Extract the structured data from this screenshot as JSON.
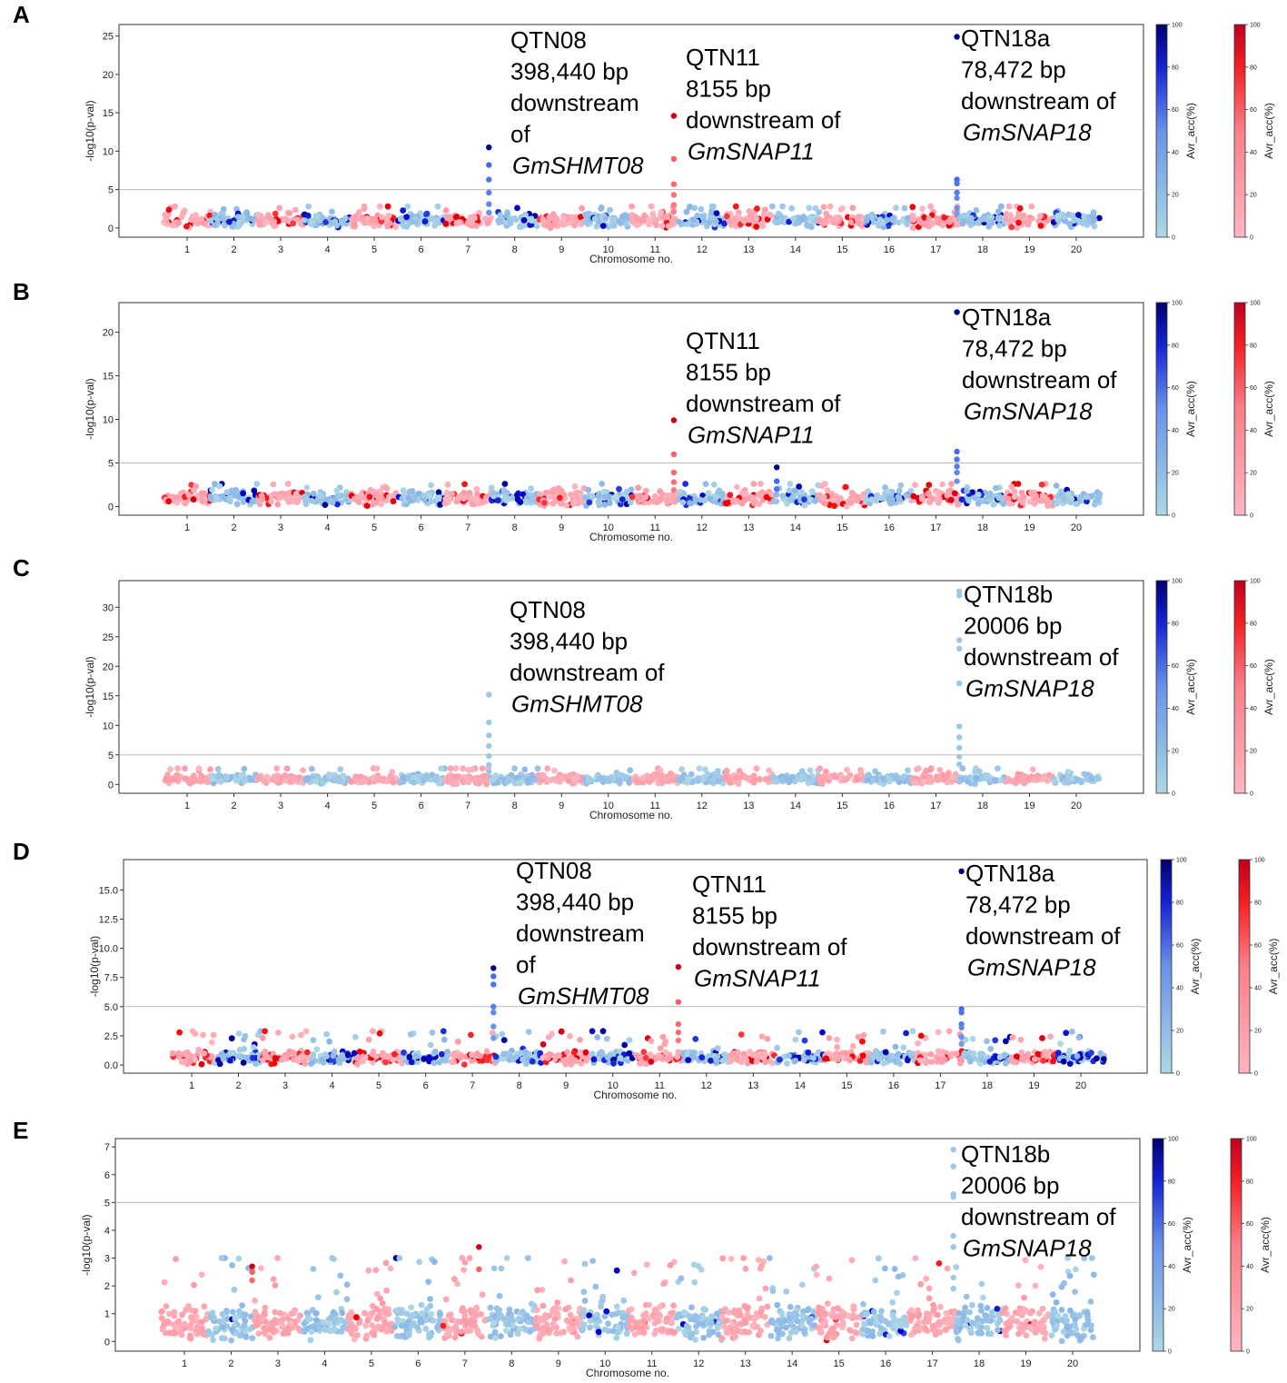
{
  "chart_data": [
    {
      "type": "scatter",
      "panel": "A",
      "xlabel": "Chromosome no.",
      "ylabel": "-log10(p-val)",
      "ylim": [
        -1.2,
        26.5
      ],
      "yticks": [
        0,
        5,
        10,
        15,
        20,
        25
      ],
      "yticks_text": [
        "0",
        "5",
        "10",
        "15",
        "20",
        "25"
      ],
      "threshold": 5,
      "x_categories": [
        "1",
        "2",
        "3",
        "4",
        "5",
        "6",
        "7",
        "8",
        "9",
        "10",
        "11",
        "12",
        "13",
        "14",
        "15",
        "16",
        "17",
        "18",
        "19",
        "20"
      ],
      "colorbar_label": "Avr_acc(%)",
      "colorbar_ticks": [
        "0",
        "20",
        "40",
        "60",
        "80",
        "100"
      ],
      "peaks": [
        {
          "chrom_index": 8,
          "offset": -0.55,
          "values": [
            10.5,
            8.2,
            6.3,
            4.6,
            3.1,
            2.0
          ]
        },
        {
          "chrom_index": 11,
          "offset": 0.4,
          "values": [
            14.6,
            9.0,
            5.7,
            4.3,
            3.0,
            2.1
          ]
        },
        {
          "chrom_index": 18,
          "offset": -0.55,
          "values": [
            24.9,
            6.3,
            5.8,
            4.6,
            3.9,
            2.6,
            1.9
          ]
        }
      ],
      "annotations": [
        {
          "lines": [
            "QTN08",
            "398,440 bp",
            "downstream",
            "of"
          ],
          "gene": "GmSHMT08"
        },
        {
          "lines": [
            "QTN11",
            "8155 bp",
            "downstream of"
          ],
          "gene": "GmSNAP11"
        },
        {
          "lines": [
            "QTN18a",
            "78,472 bp",
            "downstream of"
          ],
          "gene": "GmSNAP18"
        }
      ]
    },
    {
      "type": "scatter",
      "panel": "B",
      "xlabel": "Chromosome no.",
      "ylabel": "-log10(p-val)",
      "ylim": [
        -1.0,
        23.4
      ],
      "yticks": [
        0,
        5,
        10,
        15,
        20
      ],
      "yticks_text": [
        "0",
        "5",
        "10",
        "15",
        "20"
      ],
      "threshold": 5,
      "x_categories": [
        "1",
        "2",
        "3",
        "4",
        "5",
        "6",
        "7",
        "8",
        "9",
        "10",
        "11",
        "12",
        "13",
        "14",
        "15",
        "16",
        "17",
        "18",
        "19",
        "20"
      ],
      "colorbar_label": "Avr_acc(%)",
      "colorbar_ticks": [
        "0",
        "20",
        "40",
        "60",
        "80",
        "100"
      ],
      "peaks": [
        {
          "chrom_index": 11,
          "offset": 0.4,
          "values": [
            9.9,
            6.0,
            3.9,
            2.8,
            1.9
          ]
        },
        {
          "chrom_index": 14,
          "offset": -0.4,
          "values": [
            4.5,
            2.9,
            2.0
          ]
        },
        {
          "chrom_index": 18,
          "offset": -0.55,
          "values": [
            22.3,
            6.3,
            5.4,
            4.6,
            3.9,
            2.9
          ]
        }
      ],
      "annotations": [
        {
          "lines": [
            "QTN11",
            "8155 bp",
            "downstream of"
          ],
          "gene": "GmSNAP11"
        },
        {
          "lines": [
            "QTN18a",
            "78,472 bp",
            "downstream of"
          ],
          "gene": "GmSNAP18"
        }
      ]
    },
    {
      "type": "scatter",
      "panel": "C",
      "xlabel": "Chromosome no.",
      "ylabel": "-log10(p-val)",
      "ylim": [
        -1.5,
        34.5
      ],
      "yticks": [
        0,
        5,
        10,
        15,
        20,
        25,
        30
      ],
      "yticks_text": [
        "0",
        "5",
        "10",
        "15",
        "20",
        "25",
        "30"
      ],
      "threshold": 5,
      "x_categories": [
        "1",
        "2",
        "3",
        "4",
        "5",
        "6",
        "7",
        "8",
        "9",
        "10",
        "11",
        "12",
        "13",
        "14",
        "15",
        "16",
        "17",
        "18",
        "19",
        "20"
      ],
      "colorbar_label": "Avr_acc(%)",
      "colorbar_ticks": [
        "0",
        "20",
        "40",
        "60",
        "80",
        "100"
      ],
      "peaks": [
        {
          "chrom_index": 8,
          "offset": -0.55,
          "values": [
            15.2,
            10.5,
            8.3,
            6.5,
            4.8,
            3.3,
            2.2
          ]
        },
        {
          "chrom_index": 18,
          "offset": -0.5,
          "values": [
            32.7,
            32.0,
            24.4,
            23.0,
            17.1,
            9.8,
            8.0,
            6.2,
            4.7,
            3.4
          ]
        }
      ],
      "annotations": [
        {
          "lines": [
            "QTN08",
            "398,440 bp",
            "downstream of"
          ],
          "gene": "GmSHMT08"
        },
        {
          "lines": [
            "QTN18b",
            "20006 bp",
            "downstream of"
          ],
          "gene": "GmSNAP18"
        }
      ]
    },
    {
      "type": "scatter",
      "panel": "D",
      "xlabel": "Chromosome no.",
      "ylabel": "-log10(p-val)",
      "ylim": [
        -0.7,
        17.6
      ],
      "yticks": [
        0,
        2.5,
        5,
        7.5,
        10,
        12.5,
        15
      ],
      "yticks_text": [
        "0.0",
        "2.5",
        "5.0",
        "7.5",
        "10.0",
        "12.5",
        "15.0"
      ],
      "threshold": 5,
      "x_categories": [
        "1",
        "2",
        "3",
        "4",
        "5",
        "6",
        "7",
        "8",
        "9",
        "10",
        "11",
        "12",
        "13",
        "14",
        "15",
        "16",
        "17",
        "18",
        "19",
        "20"
      ],
      "colorbar_label": "Avr_acc(%)",
      "colorbar_ticks": [
        "0",
        "20",
        "40",
        "60",
        "80",
        "100"
      ],
      "peaks": [
        {
          "chrom_index": 8,
          "offset": -0.55,
          "values": [
            8.3,
            7.6,
            6.9,
            5.0,
            4.5,
            3.3,
            2.3
          ]
        },
        {
          "chrom_index": 11,
          "offset": 0.4,
          "values": [
            8.4,
            5.4,
            3.5,
            2.8,
            2.1
          ]
        },
        {
          "chrom_index": 18,
          "offset": -0.55,
          "values": [
            16.6,
            4.8,
            4.5,
            3.5,
            3.2,
            2.4,
            1.8
          ]
        }
      ],
      "annotations": [
        {
          "lines": [
            "QTN08",
            "398,440 bp",
            "downstream",
            "of"
          ],
          "gene": "GmSHMT08"
        },
        {
          "lines": [
            "QTN11",
            "8155 bp",
            "downstream of"
          ],
          "gene": "GmSNAP11"
        },
        {
          "lines": [
            "QTN18a",
            "78,472 bp",
            "downstream of"
          ],
          "gene": "GmSNAP18"
        }
      ]
    },
    {
      "type": "scatter",
      "panel": "E",
      "xlabel": "Chromosome no.",
      "ylabel": "-log10(p-val)",
      "ylim": [
        -0.35,
        7.3
      ],
      "yticks": [
        0,
        1,
        2,
        3,
        4,
        5,
        6,
        7
      ],
      "yticks_text": [
        "0",
        "1",
        "2",
        "3",
        "4",
        "5",
        "6",
        "7"
      ],
      "threshold": 5,
      "x_categories": [
        "1",
        "2",
        "3",
        "4",
        "5",
        "6",
        "7",
        "8",
        "9",
        "10",
        "11",
        "12",
        "13",
        "14",
        "15",
        "16",
        "17",
        "18",
        "19",
        "20"
      ],
      "colorbar_label": "Avr_acc(%)",
      "colorbar_ticks": [
        "0",
        "20",
        "40",
        "60",
        "80",
        "100"
      ],
      "peaks": [
        {
          "chrom_index": 18,
          "offset": -0.55,
          "values": [
            6.9,
            6.3,
            5.3,
            5.2,
            3.8,
            3.4,
            2.3,
            1.9
          ]
        },
        {
          "chrom_index": 7,
          "offset": 0.3,
          "values": [
            3.4,
            2.6
          ]
        },
        {
          "chrom_index": 3,
          "offset": -0.55,
          "values": [
            2.7,
            2.5,
            2.2
          ]
        }
      ],
      "annotations": [
        {
          "lines": [
            "QTN18b",
            "20006 bp",
            "downstream of"
          ],
          "gene": "GmSNAP18"
        }
      ]
    }
  ]
}
